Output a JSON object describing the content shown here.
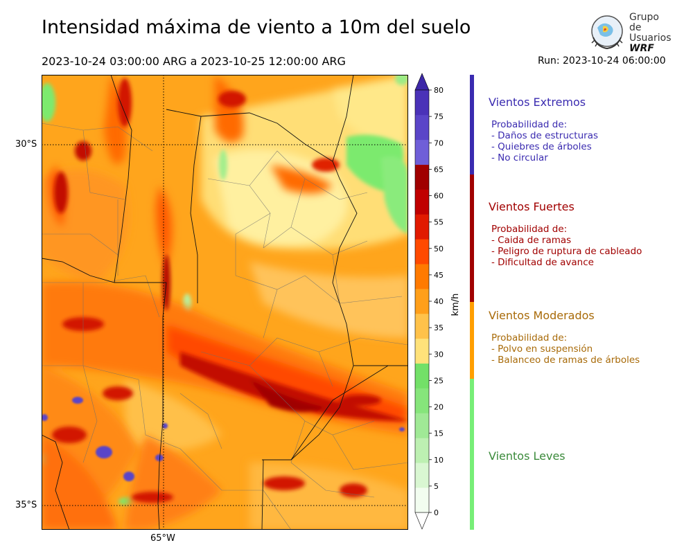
{
  "title": "Intensidad máxima de viento a 10m del suelo",
  "period": "2023-10-24 03:00:00 ARG  a  2023-10-25 12:00:00 ARG",
  "run": "Run: 2023-10-24 06:00:00",
  "logo": {
    "line1": "Grupo de",
    "line2": "Usuarios",
    "line3": "WRF"
  },
  "map": {
    "lat_labels": [
      "30°S",
      "35°S"
    ],
    "lon_labels": [
      "65°W"
    ]
  },
  "colorbar": {
    "unit": "km/h",
    "ticks": [
      "0",
      "5",
      "10",
      "15",
      "20",
      "25",
      "30",
      "35",
      "40",
      "45",
      "50",
      "55",
      "60",
      "65",
      "70",
      "75",
      "80"
    ],
    "colors": [
      "#f2fdf0",
      "#d9f7d2",
      "#bdf0b2",
      "#a0e996",
      "#86e57b",
      "#73e068",
      "#ffe27a",
      "#ffc24a",
      "#ff9f1a",
      "#ff7a00",
      "#ff4a00",
      "#e11a00",
      "#c00000",
      "#a00000",
      "#6f5fd8",
      "#5a45c8",
      "#4a32b8"
    ],
    "over_color": "#3d28a8",
    "under_color": "#ffffff"
  },
  "categories": [
    {
      "name": "Vientos Extremos",
      "color": "#3a2bb0",
      "lines": [
        "Probabilidad de:",
        "- Daños de estructuras",
        "- Quiebres de árboles",
        "- No circular"
      ]
    },
    {
      "name": "Vientos Fuertes",
      "color": "#a10000",
      "lines": [
        "Probabilidad de:",
        "- Caida de ramas",
        "- Peligro de ruptura de cableado",
        "- Dificultad de avance"
      ]
    },
    {
      "name": "Vientos Moderados",
      "color": "#a86a08",
      "lines": [
        "Probabilidad de:",
        "- Polvo en suspensión",
        "- Balanceo de ramas de árboles"
      ]
    },
    {
      "name": "Vientos Leves",
      "color": "#3a8a3a",
      "lines": []
    }
  ],
  "legend_bar_colors": [
    "#3a2bb0",
    "#a10000",
    "#ff9f00",
    "#77ee77"
  ]
}
